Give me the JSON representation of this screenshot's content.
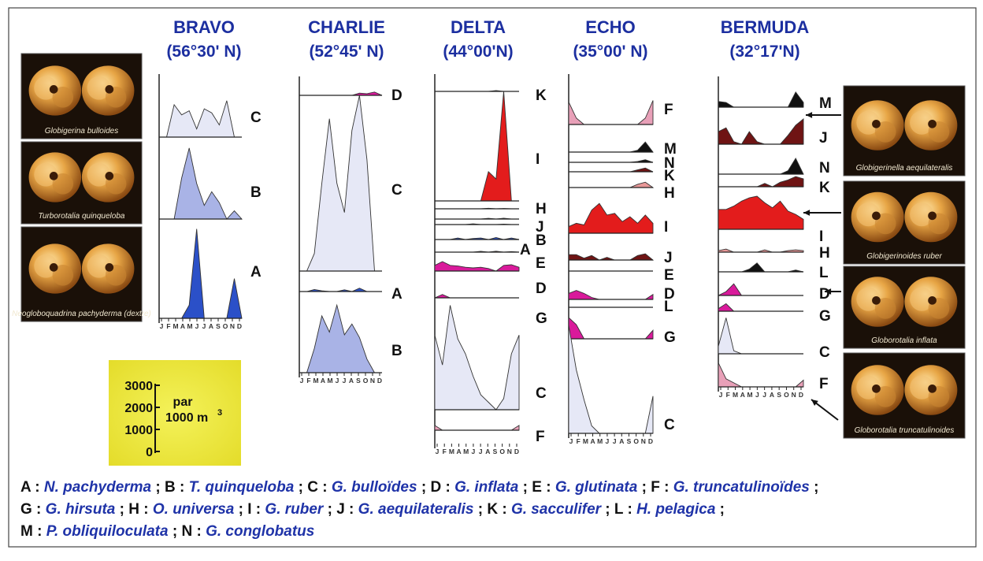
{
  "chart_data": {
    "type": "area",
    "months": [
      "J",
      "F",
      "M",
      "A",
      "M",
      "J",
      "J",
      "A",
      "S",
      "O",
      "N",
      "D"
    ],
    "scale": {
      "ticks": [
        "3000",
        "2000",
        "1000",
        "0"
      ],
      "unit_top": "par",
      "unit_bottom": "1000 m",
      "unit_sup": "3",
      "max": 3000
    },
    "stations": [
      {
        "name": "BRAVO",
        "lat": "(56°30' N)",
        "panels": [
          {
            "label": "C",
            "color": "#e6e8f6",
            "values": [
              0,
              0,
              1600,
              1100,
              1300,
              400,
              1400,
              1200,
              600,
              1800,
              0,
              0
            ]
          },
          {
            "label": "B",
            "color": "#a9b3e6",
            "values": [
              0,
              0,
              0,
              1500,
              2600,
              1300,
              500,
              1000,
              600,
              0,
              300,
              0
            ]
          },
          {
            "label": "A",
            "color": "#2b50c8",
            "values": [
              0,
              0,
              0,
              0,
              400,
              2700,
              0,
              0,
              0,
              0,
              1200,
              0
            ]
          }
        ]
      },
      {
        "name": "CHARLIE",
        "lat": "(52°45' N)",
        "panels": [
          {
            "label": "D",
            "color": "#d91a9b",
            "values": [
              0,
              0,
              0,
              0,
              0,
              0,
              0,
              0,
              400,
              300,
              600,
              0
            ]
          },
          {
            "label": "C",
            "color": "#e6e8f6",
            "values": [
              0,
              0,
              300,
              1500,
              2600,
              1500,
              1000,
              2400,
              3000,
              1900,
              0,
              0
            ]
          },
          {
            "label": "A",
            "color": "#2b50c8",
            "values": [
              0,
              0,
              300,
              100,
              0,
              0,
              250,
              0,
              500,
              0,
              0,
              0
            ]
          },
          {
            "label": "B",
            "color": "#a9b3e6",
            "values": [
              0,
              0,
              900,
              2100,
              1500,
              2500,
              1400,
              1800,
              1300,
              500,
              0,
              0
            ]
          }
        ]
      },
      {
        "name": "DELTA",
        "lat": "(44°00'N)",
        "panels": [
          {
            "label": "K",
            "color": "#7a1414",
            "values": [
              0,
              0,
              0,
              0,
              0,
              0,
              0,
              0,
              150,
              0,
              0,
              0
            ]
          },
          {
            "label": "I",
            "color": "#e31c1c",
            "values": [
              0,
              0,
              0,
              0,
              0,
              0,
              0,
              800,
              600,
              3000,
              0,
              0
            ]
          },
          {
            "label": "H",
            "color": "#e89898",
            "values": [
              0,
              0,
              0,
              0,
              0,
              0,
              0,
              250,
              0,
              150,
              0,
              0
            ]
          },
          {
            "label": "J",
            "color": "#6f1414",
            "values": [
              0,
              0,
              0,
              0,
              0,
              0,
              0,
              200,
              0,
              250,
              0,
              0
            ]
          },
          {
            "label": "B",
            "color": "#a9b3e6",
            "values": [
              0,
              0,
              0,
              0,
              0,
              400,
              0,
              0,
              0,
              200,
              0,
              0
            ]
          },
          {
            "label": "A",
            "color": "#2b50c8",
            "values": [
              0,
              0,
              0,
              300,
              0,
              200,
              300,
              0,
              400,
              0,
              300,
              0
            ]
          },
          {
            "label": "E",
            "color": "#6f1414",
            "values": [
              0,
              0,
              0,
              0,
              0,
              0,
              200,
              0,
              250,
              0,
              150,
              0
            ]
          },
          {
            "label": "D",
            "color": "#d91a9b",
            "values": [
              900,
              1500,
              900,
              800,
              600,
              500,
              600,
              400,
              0,
              900,
              1000,
              600
            ]
          },
          {
            "label": "G",
            "color": "#d91a9b",
            "values": [
              0,
              400,
              0,
              0,
              0,
              0,
              0,
              0,
              0,
              0,
              0,
              0
            ]
          },
          {
            "label": "C",
            "color": "#e6e8f6",
            "values": [
              2000,
              1200,
              2800,
              1900,
              1500,
              900,
              400,
              200,
              0,
              300,
              1500,
              2000
            ]
          },
          {
            "label": "F",
            "color": "#e8a0b8",
            "values": [
              700,
              0,
              0,
              0,
              0,
              0,
              0,
              0,
              0,
              0,
              0,
              700
            ]
          }
        ]
      },
      {
        "name": "ECHO",
        "lat": "(35°00' N)",
        "panels": [
          {
            "label": "F",
            "color": "#e8a0b8",
            "values": [
              1400,
              400,
              0,
              0,
              0,
              0,
              0,
              0,
              0,
              0,
              400,
              1500
            ]
          },
          {
            "label": "M",
            "color": "#111111",
            "values": [
              0,
              0,
              0,
              0,
              0,
              0,
              0,
              0,
              0,
              200,
              1100,
              0
            ]
          },
          {
            "label": "N",
            "color": "#111111",
            "values": [
              0,
              0,
              0,
              0,
              0,
              0,
              0,
              0,
              0,
              100,
              300,
              0
            ]
          },
          {
            "label": "K",
            "color": "#6f1414",
            "values": [
              0,
              0,
              0,
              0,
              0,
              0,
              0,
              0,
              0,
              200,
              400,
              0
            ]
          },
          {
            "label": "H",
            "color": "#e89898",
            "values": [
              0,
              0,
              0,
              0,
              0,
              0,
              0,
              0,
              0,
              300,
              500,
              0
            ]
          },
          {
            "label": "I",
            "color": "#e31c1c",
            "values": [
              400,
              600,
              500,
              1400,
              1800,
              1100,
              1200,
              700,
              1000,
              600,
              1100,
              600
            ]
          },
          {
            "label": "J",
            "color": "#6f1414",
            "values": [
              600,
              600,
              200,
              500,
              0,
              300,
              0,
              0,
              0,
              500,
              700,
              0
            ]
          },
          {
            "label": "E",
            "color": "#6f1414",
            "values": [
              0,
              0,
              0,
              0,
              0,
              0,
              0,
              0,
              0,
              0,
              0,
              0
            ]
          },
          {
            "label": "D",
            "color": "#d91a9b",
            "values": [
              600,
              900,
              600,
              200,
              0,
              0,
              0,
              0,
              0,
              0,
              0,
              500
            ]
          },
          {
            "label": "L",
            "color": "#111111",
            "values": [
              0,
              0,
              0,
              0,
              0,
              0,
              0,
              0,
              0,
              0,
              0,
              0
            ]
          },
          {
            "label": "G",
            "color": "#d91a9b",
            "values": [
              1500,
              1000,
              0,
              0,
              0,
              0,
              0,
              0,
              0,
              0,
              0,
              600
            ]
          },
          {
            "label": "C",
            "color": "#e6e8f6",
            "values": [
              2900,
              1700,
              900,
              200,
              0,
              0,
              0,
              0,
              0,
              0,
              0,
              1000
            ]
          }
        ]
      },
      {
        "name": "BERMUDA",
        "lat": "(32°17'N)",
        "panels": [
          {
            "label": "M",
            "color": "#111111",
            "values": [
              600,
              500,
              0,
              0,
              0,
              0,
              0,
              0,
              0,
              0,
              1600,
              500
            ]
          },
          {
            "label": "J",
            "color": "#6f1414",
            "values": [
              1000,
              1300,
              200,
              0,
              1000,
              200,
              0,
              0,
              0,
              700,
              1500,
              2000
            ]
          },
          {
            "label": "N",
            "color": "#111111",
            "values": [
              0,
              0,
              0,
              0,
              0,
              0,
              0,
              0,
              0,
              300,
              1400,
              0
            ]
          },
          {
            "label": "K",
            "color": "#6f1414",
            "values": [
              0,
              0,
              0,
              0,
              0,
              0,
              300,
              0,
              400,
              600,
              900,
              700
            ]
          },
          {
            "label": "I",
            "color": "#e31c1c",
            "values": [
              1200,
              1200,
              1400,
              1700,
              1900,
              2000,
              1600,
              1300,
              1700,
              1100,
              900,
              600
            ]
          },
          {
            "label": "H",
            "color": "#e89898",
            "values": [
              200,
              400,
              0,
              0,
              0,
              0,
              300,
              0,
              0,
              200,
              300,
              200
            ]
          },
          {
            "label": "L",
            "color": "#111111",
            "values": [
              0,
              0,
              0,
              0,
              300,
              1000,
              0,
              0,
              0,
              0,
              200,
              0
            ]
          },
          {
            "label": "D",
            "color": "#d91a9b",
            "values": [
              0,
              400,
              1200,
              0,
              0,
              0,
              0,
              0,
              0,
              0,
              0,
              0
            ]
          },
          {
            "label": "G",
            "color": "#d91a9b",
            "values": [
              400,
              1200,
              0,
              0,
              0,
              0,
              0,
              0,
              0,
              0,
              0,
              0
            ]
          },
          {
            "label": "C",
            "color": "#e6e8f6",
            "values": [
              500,
              2400,
              200,
              0,
              0,
              0,
              0,
              0,
              0,
              0,
              0,
              0
            ]
          },
          {
            "label": "F",
            "color": "#e8a0b8",
            "values": [
              1800,
              600,
              300,
              0,
              0,
              0,
              0,
              0,
              0,
              0,
              0,
              500
            ]
          }
        ]
      }
    ]
  },
  "photos": [
    {
      "caption": "Globigerina bulloides"
    },
    {
      "caption": "Turborotalia quinqueloba"
    },
    {
      "caption": "Neogloboquadrina pachyderma (dextre)"
    },
    {
      "caption": "Globigerinella aequilateralis"
    },
    {
      "caption": "Globigerinoides ruber"
    },
    {
      "caption": "Globorotalia inflata"
    },
    {
      "caption": "Globorotalia truncatulinoides"
    }
  ],
  "legend": {
    "line1": [
      {
        "code": "A :",
        "sp": "N. pachyderma"
      },
      {
        "code": "; B :",
        "sp": "T. quinqueloba"
      },
      {
        "code": "; C :",
        "sp": "G. bulloïdes"
      },
      {
        "code": "; D :",
        "sp": "G. inflata"
      },
      {
        "code": "; E :",
        "sp": "G. glutinata"
      },
      {
        "code": "; F :",
        "sp": "G. truncatulinoïdes"
      },
      {
        "code": ";",
        "sp": ""
      }
    ],
    "line2": [
      {
        "code": "G :",
        "sp": "G. hirsuta"
      },
      {
        "code": "; H :",
        "sp": "O. universa"
      },
      {
        "code": "; I :",
        "sp": "G. ruber"
      },
      {
        "code": "; J :",
        "sp": "G. aequilateralis"
      },
      {
        "code": "; K :",
        "sp": "G. sacculifer"
      },
      {
        "code": "; L :",
        "sp": "H. pelagica"
      },
      {
        "code": ";",
        "sp": ""
      }
    ],
    "line3": [
      {
        "code": "M :",
        "sp": "P. obliquiloculata"
      },
      {
        "code": "; N :",
        "sp": "G. conglobatus"
      }
    ]
  }
}
